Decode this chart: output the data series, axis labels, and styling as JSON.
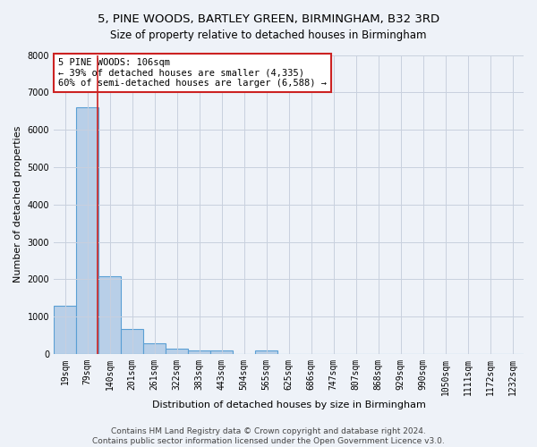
{
  "title": "5, PINE WOODS, BARTLEY GREEN, BIRMINGHAM, B32 3RD",
  "subtitle": "Size of property relative to detached houses in Birmingham",
  "xlabel": "Distribution of detached houses by size in Birmingham",
  "ylabel": "Number of detached properties",
  "categories": [
    "19sqm",
    "79sqm",
    "140sqm",
    "201sqm",
    "261sqm",
    "322sqm",
    "383sqm",
    "443sqm",
    "504sqm",
    "565sqm",
    "625sqm",
    "686sqm",
    "747sqm",
    "807sqm",
    "868sqm",
    "929sqm",
    "990sqm",
    "1050sqm",
    "1111sqm",
    "1172sqm",
    "1232sqm"
  ],
  "values": [
    1300,
    6600,
    2080,
    660,
    285,
    150,
    90,
    100,
    0,
    105,
    0,
    0,
    0,
    0,
    0,
    0,
    0,
    0,
    0,
    0,
    0
  ],
  "bar_color": "#b8cfe8",
  "bar_edge_color": "#5a9fd4",
  "vline_color": "#cc2222",
  "annotation_text": "5 PINE WOODS: 106sqm\n← 39% of detached houses are smaller (4,335)\n60% of semi-detached houses are larger (6,588) →",
  "annotation_box_color": "#ffffff",
  "annotation_box_edge_color": "#cc2222",
  "ylim": [
    0,
    8000
  ],
  "yticks": [
    0,
    1000,
    2000,
    3000,
    4000,
    5000,
    6000,
    7000,
    8000
  ],
  "footer_line1": "Contains HM Land Registry data © Crown copyright and database right 2024.",
  "footer_line2": "Contains public sector information licensed under the Open Government Licence v3.0.",
  "background_color": "#eef2f8",
  "grid_color": "#c8d0de",
  "title_fontsize": 9.5,
  "subtitle_fontsize": 8.5,
  "axis_label_fontsize": 8,
  "tick_fontsize": 7,
  "footer_fontsize": 6.5,
  "annotation_fontsize": 7.5,
  "vline_x": 1.45
}
